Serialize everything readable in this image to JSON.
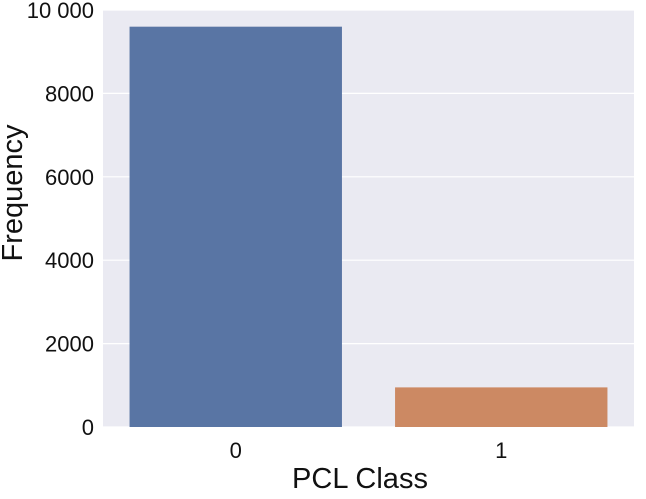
{
  "chart_data": {
    "type": "bar",
    "categories": [
      "0",
      "1"
    ],
    "values": [
      9600,
      950
    ],
    "xlabel": "PCL Class",
    "ylabel": "Frequency",
    "ylim": [
      0,
      10000
    ],
    "yticks": [
      0,
      2000,
      4000,
      6000,
      8000,
      10000
    ],
    "ytick_labels": [
      "0",
      "2000",
      "4000",
      "6000",
      "8000",
      "10 000"
    ],
    "grid": "horizontal",
    "background": "#eaeaf2",
    "colors": [
      "#5975a4",
      "#cc8963"
    ]
  }
}
